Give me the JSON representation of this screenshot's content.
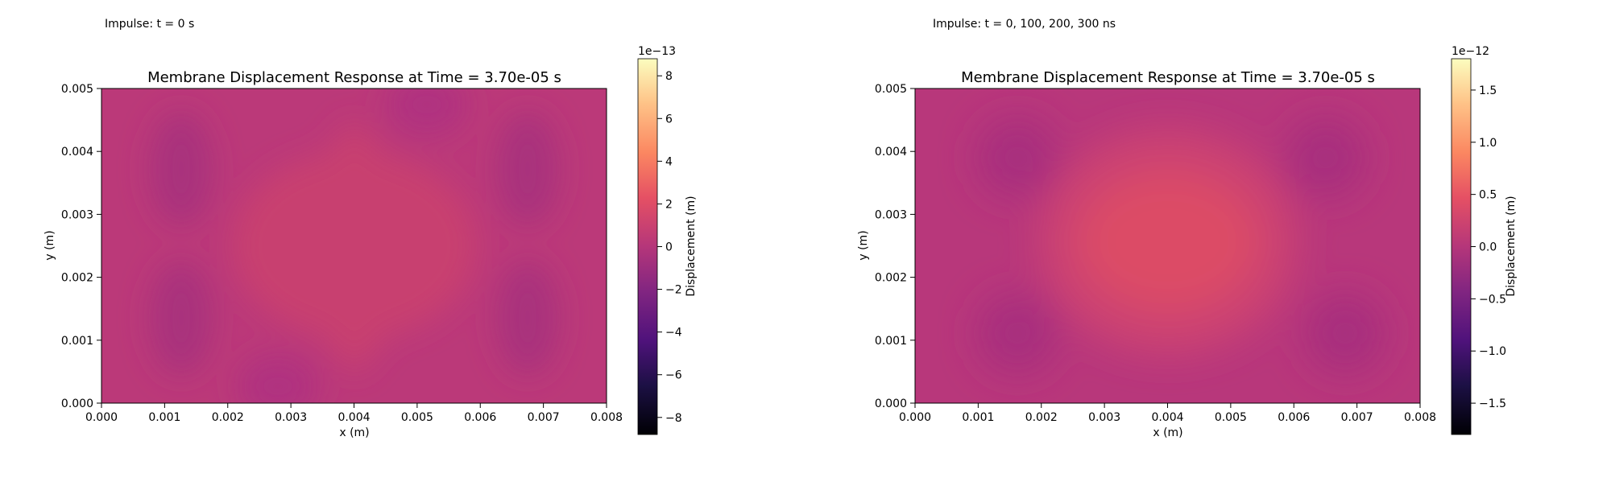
{
  "chart_data": [
    {
      "type": "heatmap",
      "label_above": "Impulse: t = 0 s",
      "title": "Membrane Displacement Response at Time = 3.70e-05 s",
      "xlabel": "x (m)",
      "ylabel": "y (m)",
      "xlim": [
        0.0,
        0.008
      ],
      "ylim": [
        0.0,
        0.005
      ],
      "x_ticks": [
        "0.000",
        "0.001",
        "0.002",
        "0.003",
        "0.004",
        "0.005",
        "0.006",
        "0.007",
        "0.008"
      ],
      "y_ticks": [
        "0.000",
        "0.001",
        "0.002",
        "0.003",
        "0.004",
        "0.005"
      ],
      "colormap": "magma",
      "colorbar": {
        "label": "Displacement (m)",
        "multiplier": "1e−13",
        "range": [
          -8.8,
          8.8
        ],
        "tick_values": [
          -8,
          -6,
          -4,
          -2,
          0,
          2,
          4,
          6,
          8
        ],
        "tick_labels": [
          "−8",
          "−6",
          "−4",
          "−2",
          "0",
          "2",
          "4",
          "6",
          "8"
        ]
      },
      "field": {
        "value_range_shown": [
          -1.2,
          1.4
        ],
        "description_values": "central plateau about +1.2e-13, lobes near (0.0012,0.0015),(0.0012,0.0035),(0.0068,0.0015),(0.0068,0.0035) about -1.0e-13"
      }
    },
    {
      "type": "heatmap",
      "label_above": "Impulse: t = 0, 100, 200, 300 ns",
      "title": "Membrane Displacement Response at Time = 3.70e-05 s",
      "xlabel": "x (m)",
      "ylabel": "y (m)",
      "xlim": [
        0.0,
        0.008
      ],
      "ylim": [
        0.0,
        0.005
      ],
      "x_ticks": [
        "0.000",
        "0.001",
        "0.002",
        "0.003",
        "0.004",
        "0.005",
        "0.006",
        "0.007",
        "0.008"
      ],
      "y_ticks": [
        "0.000",
        "0.001",
        "0.002",
        "0.003",
        "0.004",
        "0.005"
      ],
      "colormap": "magma",
      "colorbar": {
        "label": "Displacement (m)",
        "multiplier": "1e−12",
        "range": [
          -1.8,
          1.8
        ],
        "tick_values": [
          -1.5,
          -1.0,
          -0.5,
          0.0,
          0.5,
          1.0,
          1.5
        ],
        "tick_labels": [
          "−1.5",
          "−1.0",
          "−0.5",
          "0.0",
          "0.5",
          "1.0",
          "1.5"
        ]
      },
      "field": {
        "value_range_shown": [
          -0.3,
          0.45
        ],
        "description_values": "central peak about +0.45e-12, lobes near (0.0016,0.004),(0.0016,0.0012),(0.0065,0.004),(0.0068,0.0012) about -0.25e-12"
      }
    }
  ]
}
